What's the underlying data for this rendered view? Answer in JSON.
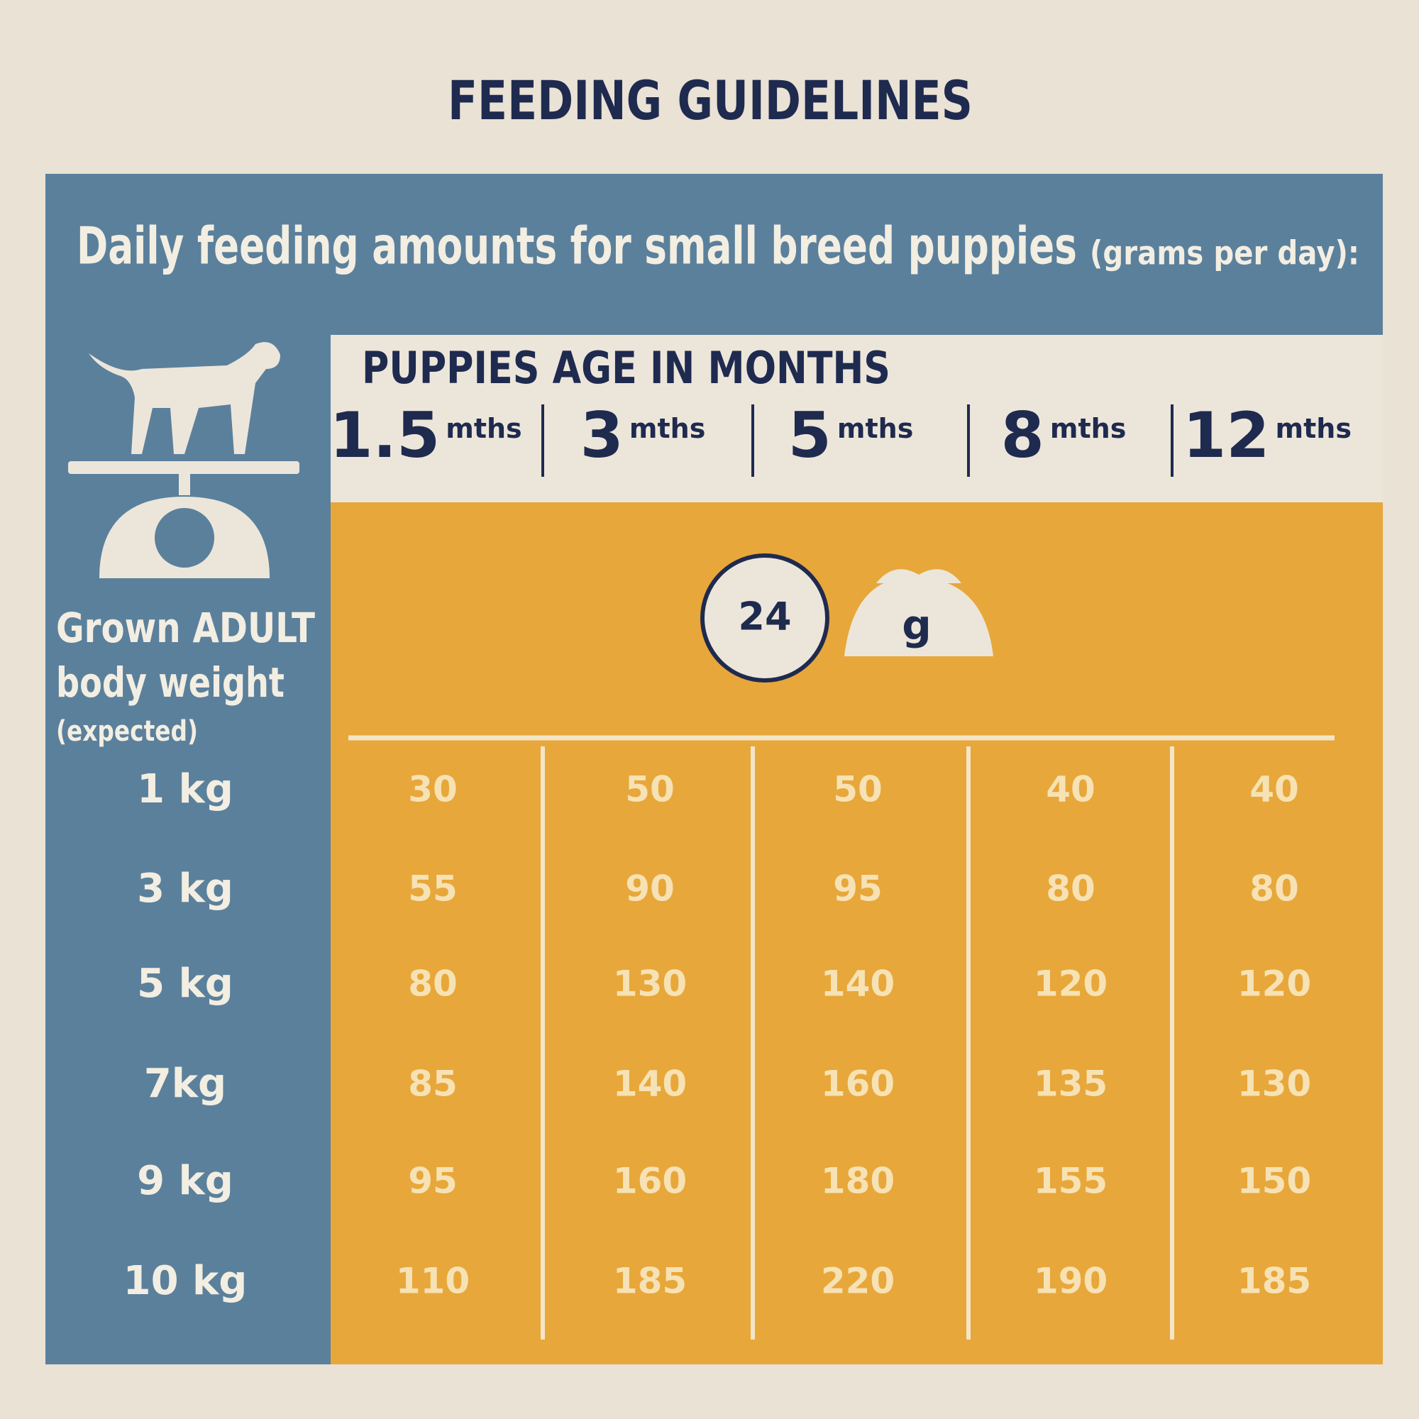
{
  "title": "FEEDING GUIDELINES",
  "subtitle": {
    "text": "Daily feeding amounts for small breed puppies",
    "unit": "(grams per day):"
  },
  "row_header": {
    "line1": "Grown ADULT",
    "line2": "body weight",
    "line3": "(expected)"
  },
  "age_header": "PUPPIES AGE IN MONTHS",
  "icons": {
    "clock": "24",
    "bowl": "g"
  },
  "columns": [
    {
      "number": "1.5",
      "unit": "mths"
    },
    {
      "number": "3",
      "unit": "mths"
    },
    {
      "number": "5",
      "unit": "mths"
    },
    {
      "number": "8",
      "unit": "mths"
    },
    {
      "number": "12",
      "unit": "mths"
    }
  ],
  "rows": [
    {
      "weight": "1 kg",
      "values": [
        30,
        50,
        50,
        40,
        40
      ]
    },
    {
      "weight": "3 kg",
      "values": [
        55,
        90,
        95,
        80,
        80
      ]
    },
    {
      "weight": "5 kg",
      "values": [
        80,
        130,
        140,
        120,
        120
      ]
    },
    {
      "weight": "7kg",
      "values": [
        85,
        140,
        160,
        135,
        130
      ]
    },
    {
      "weight": "9 kg",
      "values": [
        95,
        160,
        180,
        155,
        150
      ]
    },
    {
      "weight": "10 kg",
      "values": [
        110,
        185,
        220,
        190,
        185
      ]
    }
  ]
}
